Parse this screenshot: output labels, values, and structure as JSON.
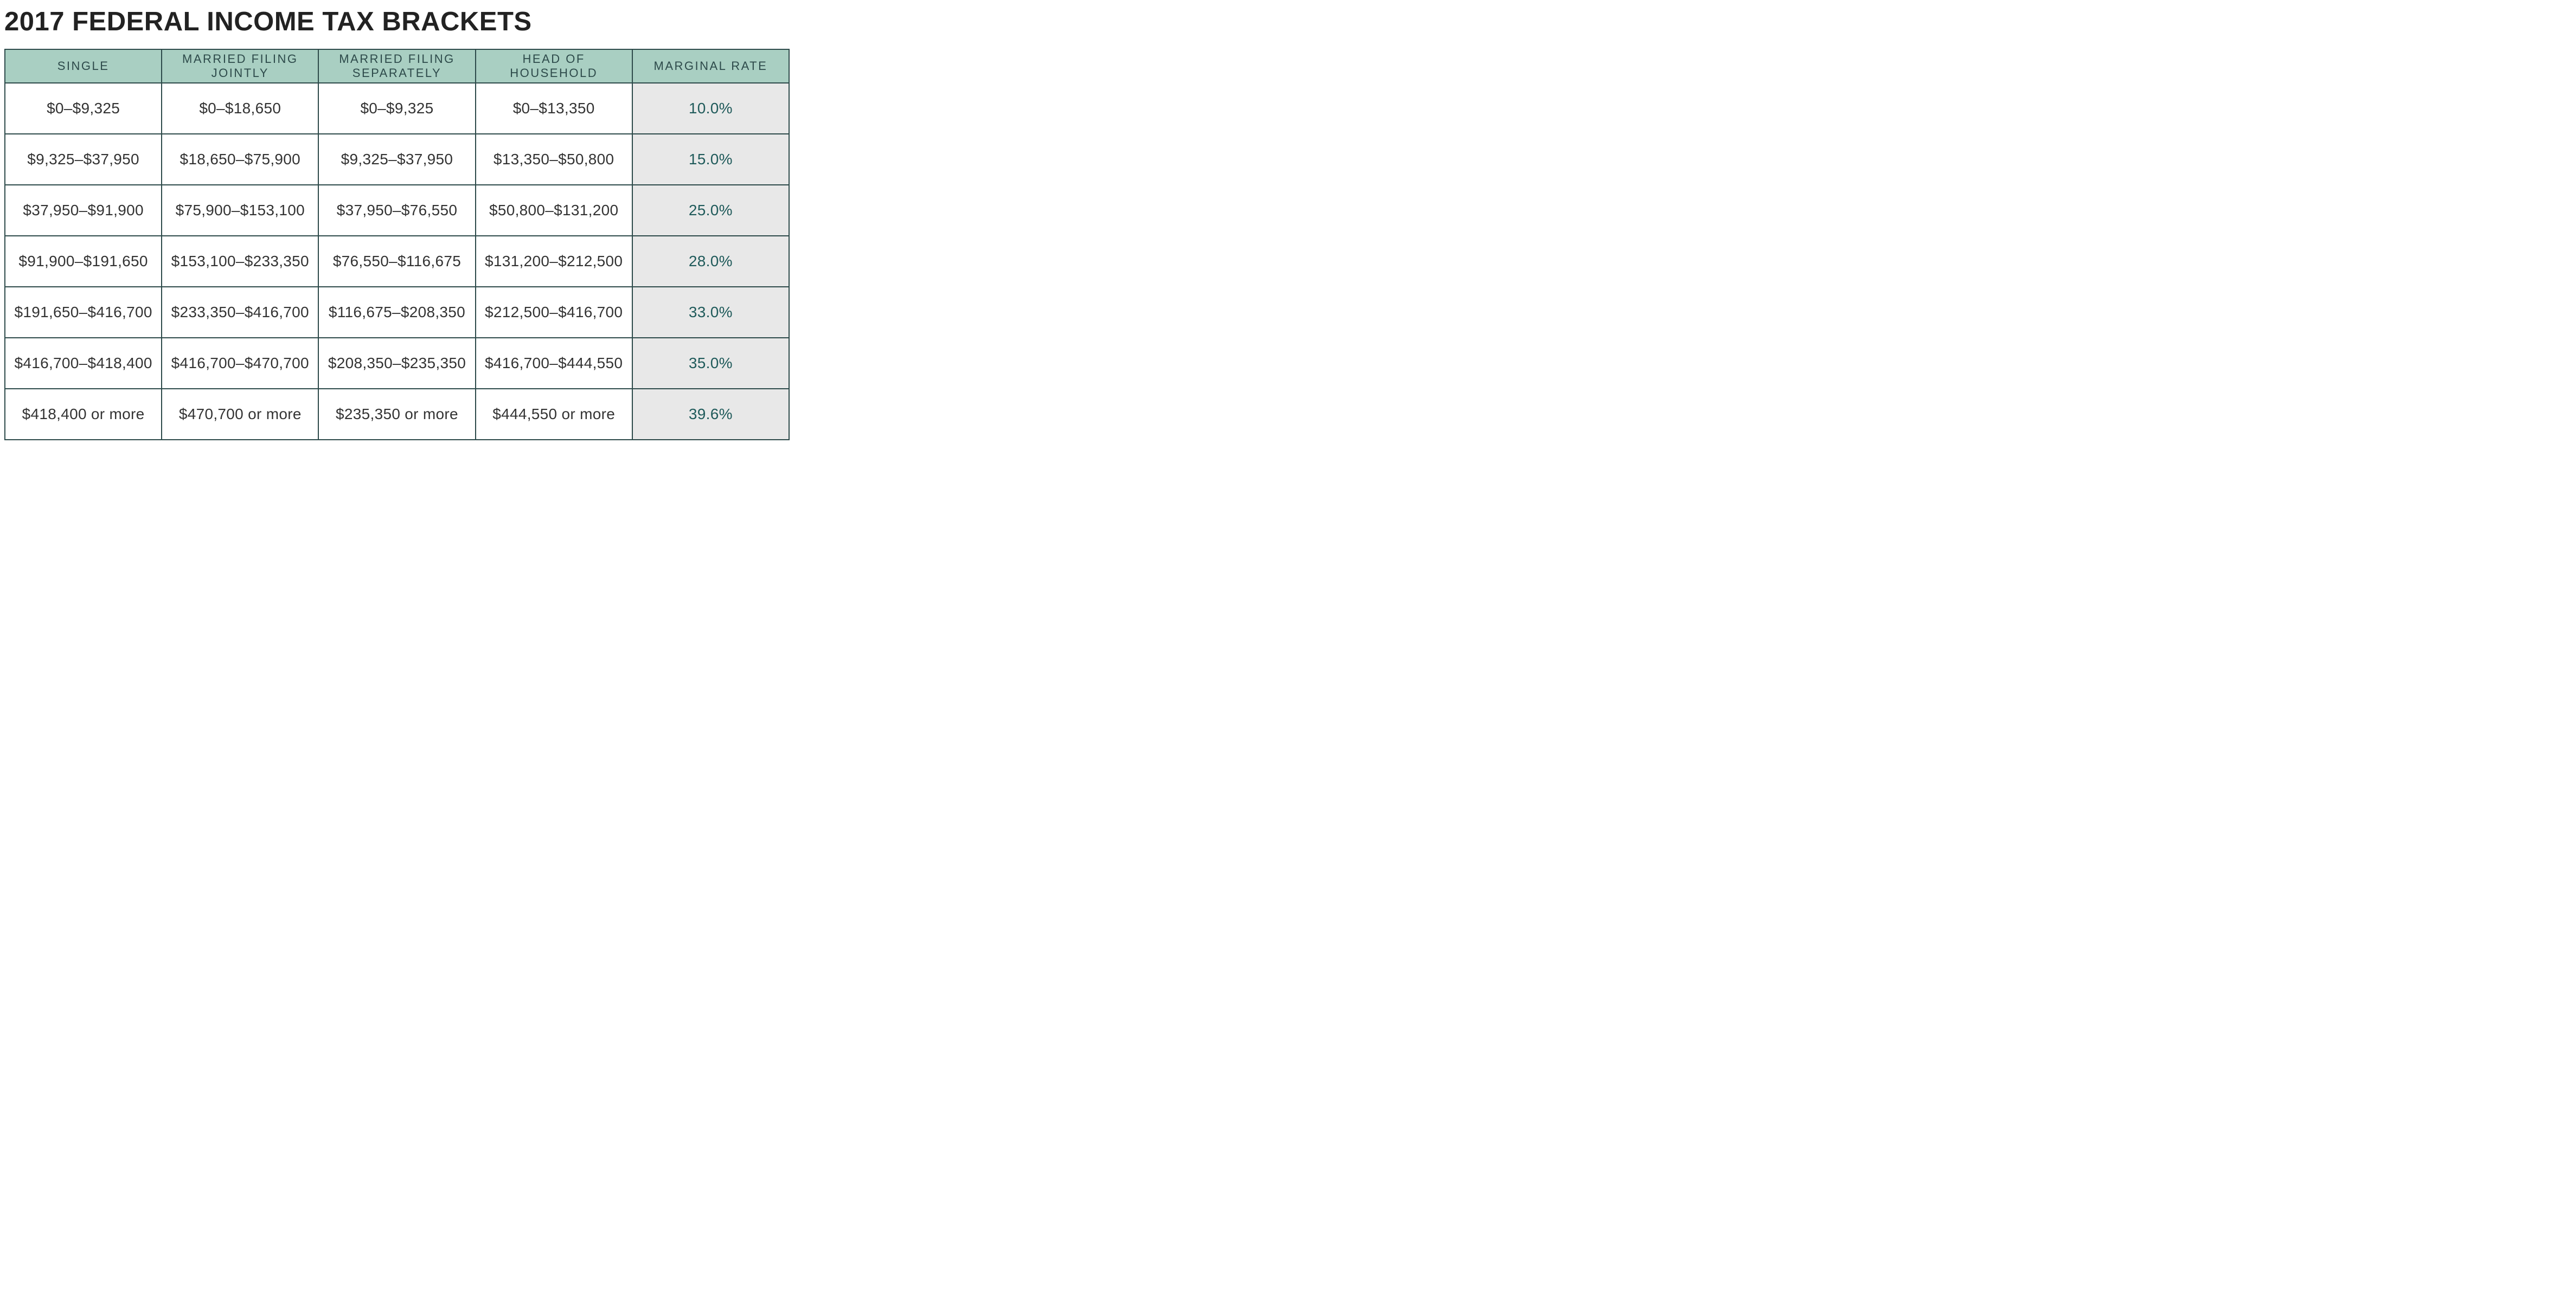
{
  "title": "2017 FEDERAL INCOME TAX BRACKETS",
  "colors": {
    "header_bg": "#a9cfc2",
    "header_text": "#2d4a4a",
    "border": "#2d4a4a",
    "body_text": "#333333",
    "body_bg": "#ffffff",
    "rate_col_bg": "#e8e8e8",
    "rate_text": "#1f5a5a",
    "title_text": "#222222"
  },
  "columns": [
    "SINGLE",
    "MARRIED FILING JOINTLY",
    "MARRIED FILING SEPARATELY",
    "HEAD OF HOUSEHOLD",
    "MARGINAL RATE"
  ],
  "rows": [
    {
      "single": "$0–$9,325",
      "mfj": "$0–$18,650",
      "mfs": "$0–$9,325",
      "hoh": "$0–$13,350",
      "rate": "10.0%"
    },
    {
      "single": "$9,325–$37,950",
      "mfj": "$18,650–$75,900",
      "mfs": "$9,325–$37,950",
      "hoh": "$13,350–$50,800",
      "rate": "15.0%"
    },
    {
      "single": "$37,950–$91,900",
      "mfj": "$75,900–$153,100",
      "mfs": "$37,950–$76,550",
      "hoh": "$50,800–$131,200",
      "rate": "25.0%"
    },
    {
      "single": "$91,900–$191,650",
      "mfj": "$153,100–$233,350",
      "mfs": "$76,550–$116,675",
      "hoh": "$131,200–$212,500",
      "rate": "28.0%"
    },
    {
      "single": "$191,650–$416,700",
      "mfj": "$233,350–$416,700",
      "mfs": "$116,675–$208,350",
      "hoh": "$212,500–$416,700",
      "rate": "33.0%"
    },
    {
      "single": "$416,700–$418,400",
      "mfj": "$416,700–$470,700",
      "mfs": "$208,350–$235,350",
      "hoh": "$416,700–$444,550",
      "rate": "35.0%"
    },
    {
      "single": "$418,400 or more",
      "mfj": "$470,700 or more",
      "mfs": "$235,350 or more",
      "hoh": "$444,550 or more",
      "rate": "39.6%"
    }
  ]
}
